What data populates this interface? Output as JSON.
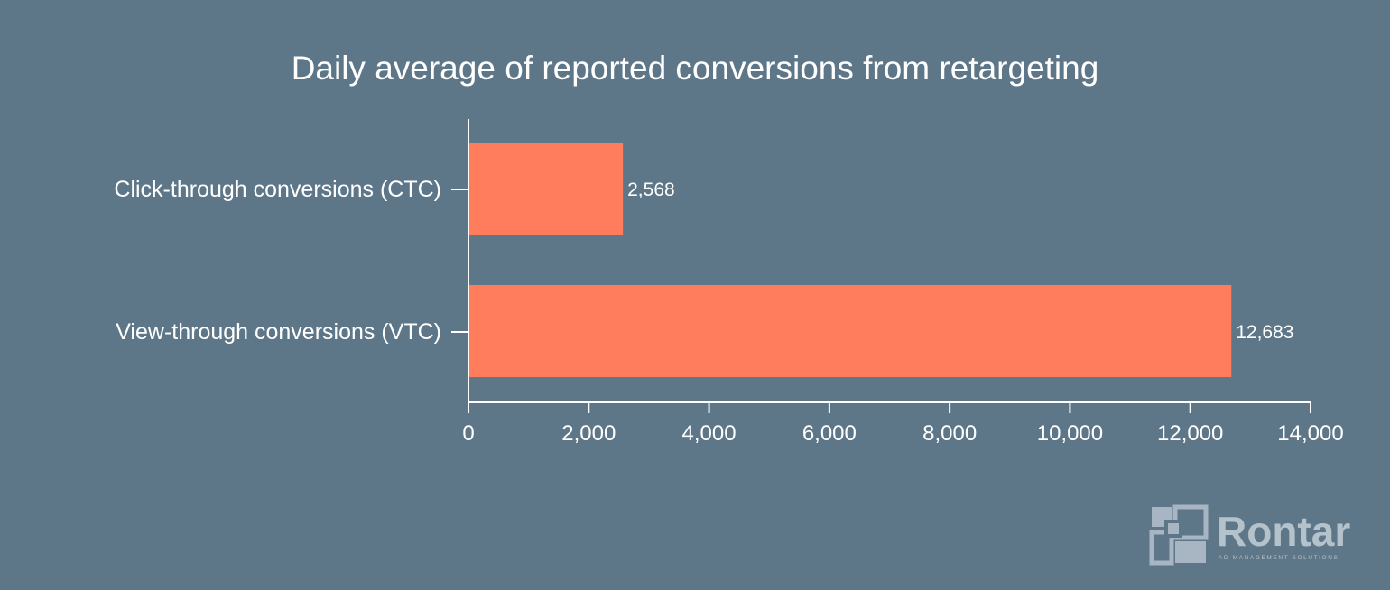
{
  "chart_data": {
    "type": "bar",
    "orientation": "horizontal",
    "title": "Daily average of reported conversions from retargeting",
    "categories": [
      "Click-through conversions (CTC)",
      "View-through conversions (VTC)"
    ],
    "values": [
      2568,
      12683
    ],
    "value_labels": [
      "2,568",
      "12,683"
    ],
    "xlim": [
      0,
      14000
    ],
    "x_ticks": [
      0,
      2000,
      4000,
      6000,
      8000,
      10000,
      12000,
      14000
    ],
    "x_tick_labels": [
      "0",
      "2,000",
      "4,000",
      "6,000",
      "8,000",
      "10,000",
      "12,000",
      "14,000"
    ],
    "grid": false,
    "legend": "none",
    "colors": {
      "background": "#5d7789",
      "bar": "#ff7c5c",
      "axis": "#ffffff",
      "text": "#ffffff",
      "logo": "#b4c2cc"
    }
  },
  "logo": {
    "name": "Rontar",
    "tagline": "AD MANAGEMENT SOLUTIONS"
  }
}
